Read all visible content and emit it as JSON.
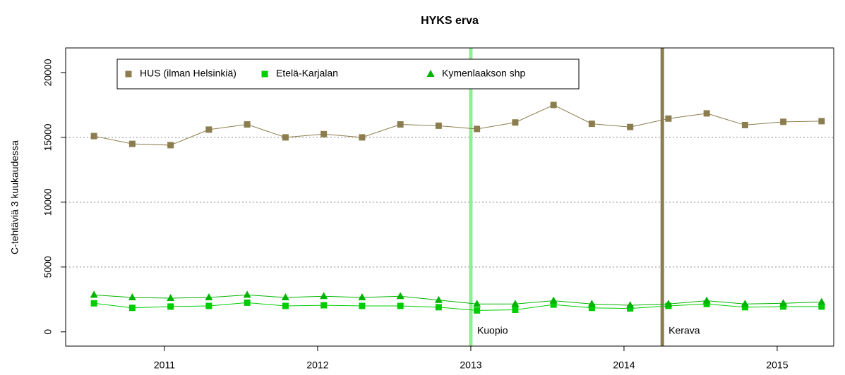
{
  "chart_data": {
    "type": "line",
    "title": "HYKS erva",
    "ylabel": "C-tehtäviä 3 kuukaudessa",
    "x": [
      2010.54,
      2010.79,
      2011.04,
      2011.29,
      2011.54,
      2011.79,
      2012.04,
      2012.29,
      2012.54,
      2012.79,
      2013.04,
      2013.29,
      2013.54,
      2013.79,
      2014.04,
      2014.29,
      2014.54,
      2014.79,
      2015.04,
      2015.29
    ],
    "series": [
      {
        "name": "HUS (ilman Helsinkiä)",
        "color": "#8b7d4e",
        "marker": "square",
        "values": [
          15100,
          14500,
          14400,
          15600,
          16000,
          15000,
          15250,
          15000,
          16000,
          15900,
          15650,
          16150,
          17500,
          16050,
          15800,
          16450,
          16850,
          15950,
          16200,
          16250
        ]
      },
      {
        "name": "Etelä-Karjalan",
        "color": "#00cd00",
        "marker": "square",
        "values": [
          2200,
          1850,
          1950,
          2000,
          2250,
          2000,
          2050,
          2000,
          2000,
          1900,
          1650,
          1700,
          2100,
          1850,
          1800,
          2000,
          2150,
          1900,
          1950,
          1950
        ]
      },
      {
        "name": "Kymenlaakson shp",
        "color": "#00b400",
        "marker": "triangle",
        "values": [
          2850,
          2650,
          2600,
          2650,
          2850,
          2650,
          2750,
          2650,
          2750,
          2450,
          2150,
          2150,
          2400,
          2150,
          2050,
          2150,
          2400,
          2150,
          2200,
          2300
        ]
      }
    ],
    "xlim": [
      2010.355,
      2015.369
    ],
    "xticks": [
      2011,
      2012,
      2013,
      2014,
      2015
    ],
    "ylim": [
      -1100,
      21900
    ],
    "yticks": [
      0,
      5000,
      10000,
      15000,
      20000
    ],
    "hgrid": [
      5000,
      10000,
      15000
    ],
    "vlines": [
      {
        "x": 2013.0,
        "label": "Kuopio",
        "color": "#90ee90"
      },
      {
        "x": 2014.25,
        "label": "Kerava",
        "color": "#8b7d4e"
      }
    ]
  }
}
